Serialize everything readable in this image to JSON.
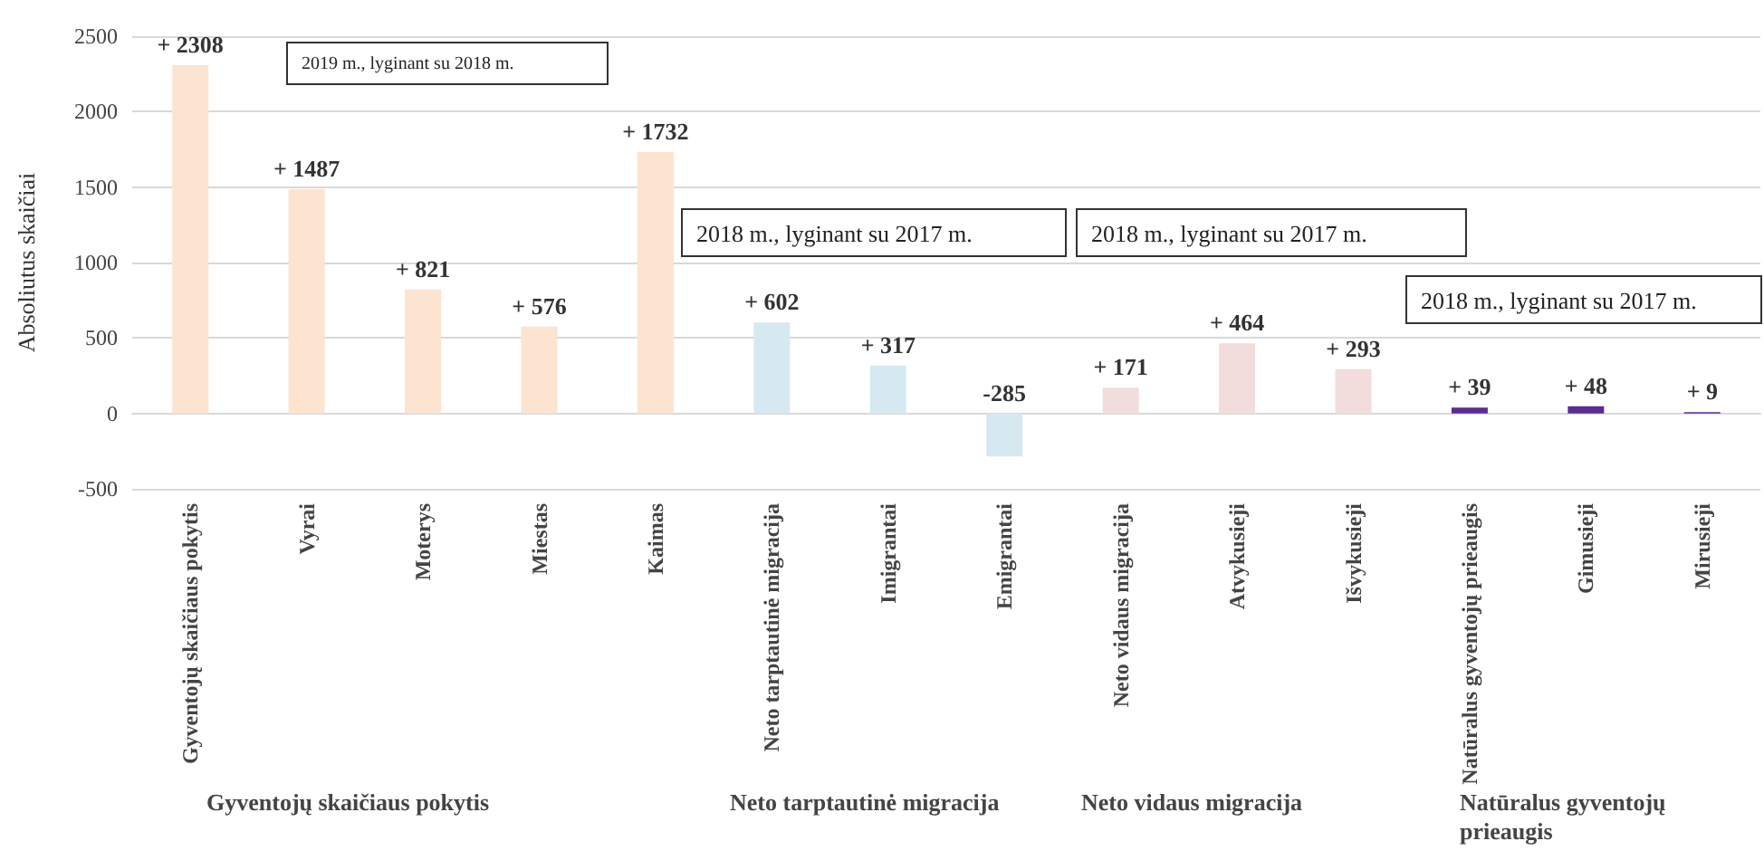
{
  "chart_data": {
    "type": "bar",
    "ylabel": "Absoliutus skaičiai",
    "categories": [
      "Gyventojų skaičiaus pokytis",
      "Vyrai",
      "Moterys",
      "Miestas",
      "Kaimas",
      "Neto tarptautinė migracija",
      "Imigrantai",
      "Emigrantai",
      "Neto vidaus migracija",
      "Atvykusieji",
      "Išvykusieji",
      "Natūralus gyventojų prieaugis",
      "Gimusieji",
      "Mirusieji"
    ],
    "values": [
      2308,
      1487,
      821,
      576,
      1732,
      602,
      317,
      -285,
      171,
      464,
      293,
      39,
      48,
      9
    ],
    "colors": [
      "#fce4d0",
      "#fce4d0",
      "#fce4d0",
      "#fce4d0",
      "#fce4d0",
      "#d6e9f1",
      "#d6e9f1",
      "#d6e9f1",
      "#f3dcdc",
      "#f3dcdc",
      "#f3dcdc",
      "#5b2d8e",
      "#5b2d8e",
      "#5b2d8e"
    ],
    "value_labels": [
      "+ 2308",
      "+ 1487",
      "+ 821",
      "+ 576",
      "+ 1732",
      "+ 602",
      "+ 317",
      "-285",
      "+ 171",
      "+ 464",
      "+ 293",
      "+ 39",
      "+ 48",
      "+ 9"
    ],
    "ylim": [
      -500,
      2500
    ],
    "yticks": [
      -500,
      0,
      500,
      1000,
      1500,
      2000,
      2500
    ],
    "grid": "y",
    "annotations": [
      "2019 m., lyginant su 2018 m.",
      "2018 m., lyginant su 2017 m.",
      "2018 m., lyginant su 2017 m.",
      "2018 m., lyginant su 2017 m.",
      "Gyventojų skaičiaus pokytis",
      "Neto tarptautinė migracija",
      "Neto vidaus migracija",
      "Natūralus gyventojų prieaugis"
    ]
  }
}
